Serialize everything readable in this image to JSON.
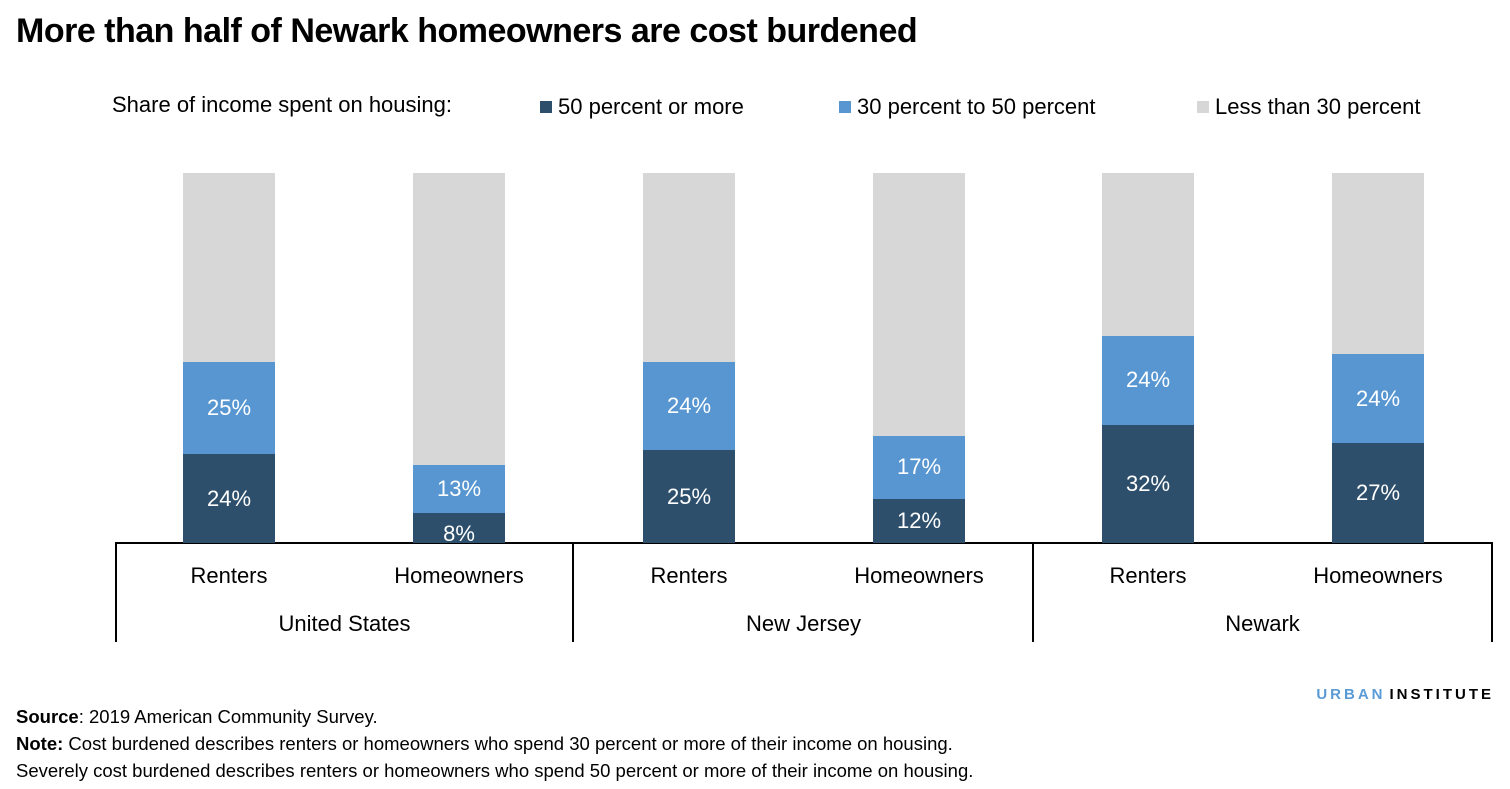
{
  "title": "More than half of Newark homeowners are cost burdened",
  "legend": {
    "label": "Share of income spent on housing:",
    "items": [
      {
        "label": "50 percent or more",
        "color": "#2e4f6c"
      },
      {
        "label": "30 percent to 50 percent",
        "color": "#5796d1"
      },
      {
        "label": "Less than 30 percent",
        "color": "#d7d7d7"
      }
    ]
  },
  "chart_data": {
    "type": "bar",
    "stacked": true,
    "title": "More than half of Newark homeowners are cost burdened",
    "xlabel": "",
    "ylabel": "",
    "ylim": [
      0,
      100
    ],
    "grid": false,
    "legend_position": "top",
    "groups": [
      "United States",
      "New Jersey",
      "Newark"
    ],
    "categories": [
      "Renters",
      "Homeowners",
      "Renters",
      "Homeowners",
      "Renters",
      "Homeowners"
    ],
    "series": [
      {
        "name": "50 percent or more",
        "color": "#2e4f6c",
        "values": [
          24,
          8,
          25,
          12,
          32,
          27
        ],
        "labels": [
          "24%",
          "8%",
          "25%",
          "12%",
          "32%",
          "27%"
        ]
      },
      {
        "name": "30 percent to 50 percent",
        "color": "#5796d1",
        "values": [
          25,
          13,
          24,
          17,
          24,
          24
        ],
        "labels": [
          "25%",
          "13%",
          "24%",
          "17%",
          "24%",
          "24%"
        ]
      },
      {
        "name": "Less than 30 percent",
        "color": "#d7d7d7",
        "values": [
          51,
          79,
          51,
          71,
          44,
          49
        ],
        "labels": [
          "",
          "",
          "",
          "",
          "",
          ""
        ]
      }
    ]
  },
  "axis": {
    "categories": [
      {
        "label": "Renters"
      },
      {
        "label": "Homeowners"
      },
      {
        "label": "Renters"
      },
      {
        "label": "Homeowners"
      },
      {
        "label": "Renters"
      },
      {
        "label": "Homeowners"
      }
    ],
    "groups": [
      {
        "label": "United States"
      },
      {
        "label": "New Jersey"
      },
      {
        "label": "Newark"
      }
    ]
  },
  "footer": {
    "source_label": "Source",
    "source_text": ": 2019 American Community Survey.",
    "note_label": "Note:",
    "note_text": " Cost burdened describes renters or homeowners who spend 30 percent or more of their income on housing.",
    "note_line2": "Severely cost burdened describes renters or homeowners who spend 50 percent or more of their income on housing."
  },
  "logo": {
    "part1": "URBAN",
    "part2": "INSTITUTE"
  }
}
